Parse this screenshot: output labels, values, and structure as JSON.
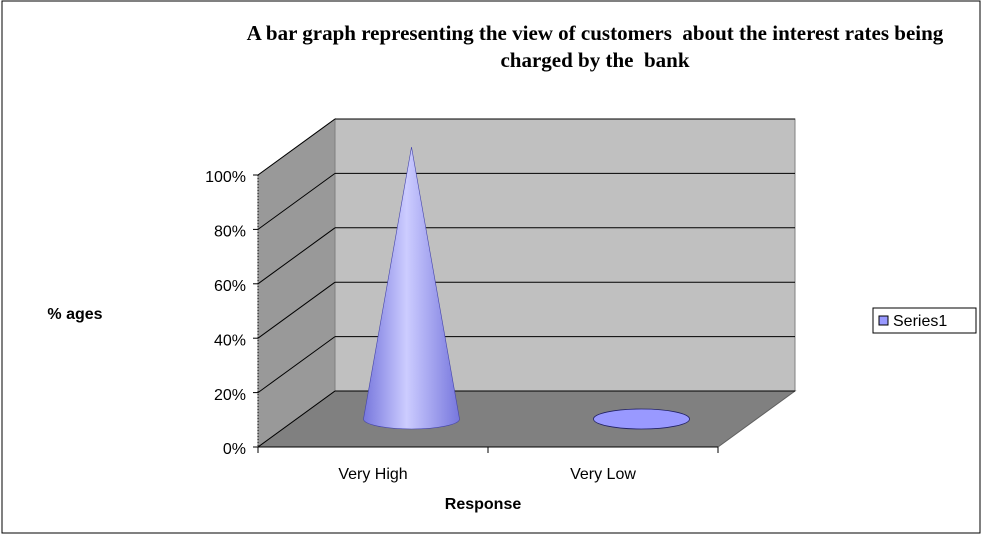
{
  "chart_data": {
    "type": "cone",
    "title": "A bar graph representing the view of customers  about the interest rates being charged by the  bank",
    "x_label": "Response",
    "y_label": "% ages",
    "categories": [
      "Very High",
      "Very Low"
    ],
    "series": [
      {
        "name": "Series1",
        "color": "#9999ff",
        "values": [
          100,
          0
        ]
      }
    ],
    "ylim": [
      0,
      100
    ],
    "yticks": [
      {
        "value": 0,
        "label": "0%"
      },
      {
        "value": 20,
        "label": "20%"
      },
      {
        "value": 40,
        "label": "40%"
      },
      {
        "value": 60,
        "label": "60%"
      },
      {
        "value": 80,
        "label": "80%"
      },
      {
        "value": 100,
        "label": "100%"
      }
    ],
    "grid": true,
    "legend": "right"
  }
}
